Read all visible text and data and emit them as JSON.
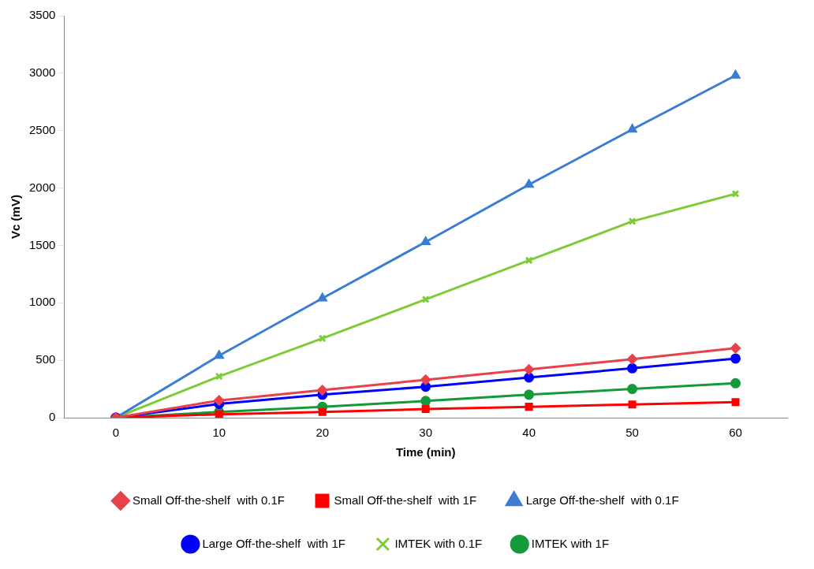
{
  "chart_data": {
    "type": "line",
    "xlabel": "Time (min)",
    "ylabel": "Vc (mV)",
    "categories": [
      "0",
      "10",
      "20",
      "30",
      "40",
      "50",
      "60"
    ],
    "ylim": [
      0,
      3500
    ],
    "yticks": [
      0,
      500,
      1000,
      1500,
      2000,
      2500,
      3000,
      3500
    ],
    "grid": false,
    "legend": "bottom",
    "line_style": "solid",
    "series": [
      {
        "name": "Small Off-the-shelf  with 0.1F",
        "color": "#e8414b",
        "marker": "diamond",
        "values": [
          0,
          150,
          240,
          330,
          420,
          510,
          605
        ]
      },
      {
        "name": "Small Off-the-shelf  with 1F",
        "color": "#ff0000",
        "marker": "square",
        "values": [
          0,
          30,
          50,
          75,
          95,
          115,
          135
        ]
      },
      {
        "name": "Large Off-the-shelf  with 0.1F",
        "color": "#3a7dd2",
        "marker": "triangle",
        "values": [
          0,
          540,
          1040,
          1530,
          2030,
          2510,
          2980
        ]
      },
      {
        "name": "Large Off-the-shelf  with 1F",
        "color": "#0000ff",
        "marker": "circle",
        "values": [
          0,
          120,
          200,
          270,
          350,
          430,
          515
        ]
      },
      {
        "name": "IMTEK with 0.1F",
        "color": "#7dcc37",
        "marker": "cross",
        "values": [
          0,
          360,
          690,
          1030,
          1370,
          1710,
          1950
        ]
      },
      {
        "name": "IMTEK with 1F",
        "color": "#159a3a",
        "marker": "circle",
        "values": [
          0,
          50,
          95,
          145,
          200,
          250,
          300
        ]
      }
    ]
  }
}
